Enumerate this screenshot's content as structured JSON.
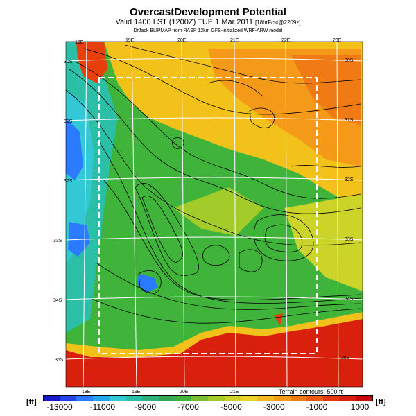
{
  "header": {
    "title": "OvercastDevelopment Potential",
    "valid": "Valid 1400 LST (1200Z) TUE 1 Mar 2011",
    "valid_note": "[18hrFcst@2209z]",
    "credit": "DrJack BLIPMAP from RASP 12km GFS-initialized WRF-ARW model"
  },
  "map": {
    "lon_labels_top": [
      "18E",
      "19E",
      "20E",
      "21E",
      "22E",
      "23E"
    ],
    "lon_labels_bottom": [
      "18E",
      "19E",
      "20E",
      "21E"
    ],
    "lat_labels_left": [
      "30S",
      "31S",
      "32S",
      "33S",
      "34S",
      "35S"
    ],
    "lat_labels_right": [
      "30S",
      "31S",
      "32S",
      "33S",
      "34S",
      "35S"
    ],
    "terrain_note": "Terrain contours: 500 ft",
    "colors": {
      "ocean": "#d8200c",
      "land_green": "#3fb33a",
      "high_yellow": "#f2c21a",
      "coast_red": "#e8400c",
      "blue": "#2a7bff",
      "cyan": "#32c8d6",
      "grid": "#ffffff",
      "box": "#ffffff",
      "contour": "#000000"
    }
  },
  "colorbar": {
    "unit_left": "[ft]",
    "unit_right": "[ft]",
    "tick_labels": [
      "-13000",
      "-11000",
      "-9000",
      "-7000",
      "-5000",
      "-3000",
      "-1000",
      "1000"
    ],
    "colors": [
      "#1a1acc",
      "#1f45e6",
      "#2a7bff",
      "#23a8f0",
      "#32c8d6",
      "#2bbfa8",
      "#2cb37c",
      "#34a850",
      "#42b33a",
      "#74c02e",
      "#a3cc2a",
      "#ccd42a",
      "#eed22a",
      "#f5b81f",
      "#f59a18",
      "#f07a14",
      "#ea5a10",
      "#e23a0c",
      "#d8200c",
      "#c80a0a"
    ]
  }
}
